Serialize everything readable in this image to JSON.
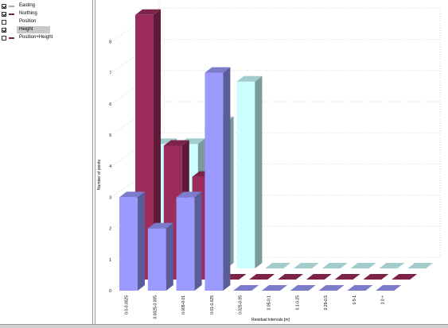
{
  "legend": {
    "items": [
      {
        "label": "Easting",
        "checked": true,
        "swatch": "#a9a9a9",
        "selected": false
      },
      {
        "label": "Northing",
        "checked": true,
        "swatch": "#7a1f4d",
        "selected": false
      },
      {
        "label": "Position",
        "checked": false,
        "swatch": "",
        "selected": false
      },
      {
        "label": "Height",
        "checked": true,
        "swatch": "",
        "selected": true
      },
      {
        "label": "Position+Height",
        "checked": false,
        "swatch": "#7a1f4d",
        "selected": false
      }
    ]
  },
  "chart_data": {
    "type": "bar",
    "title": "",
    "xlabel": "Residual intervals [m]",
    "ylabel": "Number of points",
    "ylim": [
      0,
      8
    ],
    "yticks": [
      "0",
      "1",
      "2",
      "3",
      "4",
      "5",
      "6",
      "7",
      "8"
    ],
    "categories": [
      "0.0-0.0025",
      "0.0025-0.005",
      "0.005-0.01",
      "0.01-0.025",
      "0.025-0.05",
      "0.05-0.1",
      "0.1-0.25",
      "0.25-0.5",
      "0.5-1",
      "1.0 +"
    ],
    "series": [
      {
        "values": [
          3,
          2,
          3,
          7,
          0,
          0,
          0,
          0,
          0,
          0
        ],
        "color": "#9a9aff"
      },
      {
        "values": [
          8.5,
          4.3,
          3.3,
          0,
          0,
          0,
          0,
          0,
          0,
          0
        ],
        "color": "#9c2c5c"
      },
      {
        "values": [
          4,
          4,
          4.7,
          6,
          0,
          0,
          0,
          0,
          0,
          0
        ],
        "color": "#ccffff"
      }
    ],
    "grid": true
  }
}
